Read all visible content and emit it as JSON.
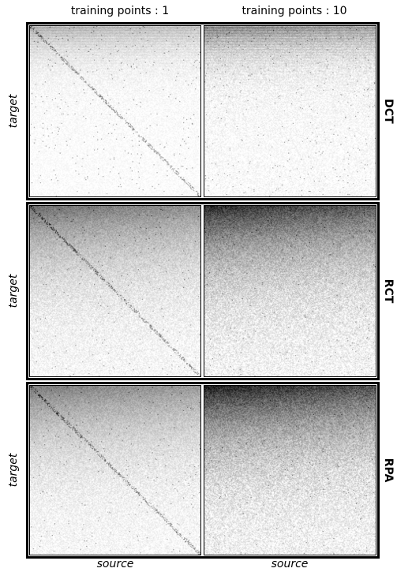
{
  "chart_data": {
    "type": "heatmap",
    "columns": [
      "training points : 1",
      "training points : 10"
    ],
    "rows": [
      "DCT",
      "RCT",
      "RPA"
    ],
    "xlabel": "source",
    "ylabel": "target",
    "panels": [
      {
        "row": "DCT",
        "column": "training points : 1",
        "density": 0.35,
        "pattern": "top-heavy sparse with diagonal streaks"
      },
      {
        "row": "DCT",
        "column": "training points : 10",
        "density": 0.55,
        "pattern": "dense top bands fading downward"
      },
      {
        "row": "RCT",
        "column": "training points : 1",
        "density": 0.55,
        "pattern": "smooth gradient dark at top-left"
      },
      {
        "row": "RCT",
        "column": "training points : 10",
        "density": 0.8,
        "pattern": "strong dark top band fading downward"
      },
      {
        "row": "RPA",
        "column": "training points : 1",
        "density": 0.5,
        "pattern": "gradient dark at top"
      },
      {
        "row": "RPA",
        "column": "training points : 10",
        "density": 0.85,
        "pattern": "very dark top band fading downward"
      }
    ],
    "colormap": "greys",
    "colors": {
      "low": "#ffffff",
      "high": "#000000"
    }
  }
}
